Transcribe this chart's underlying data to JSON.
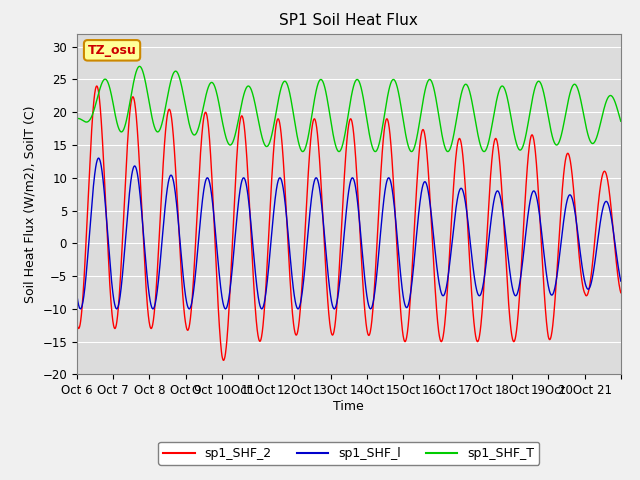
{
  "title": "SP1 Soil Heat Flux",
  "ylabel": "Soil Heat Flux (W/m2), SoilT (C)",
  "xlabel": "Time",
  "ylim": [
    -20,
    32
  ],
  "yticks": [
    -20,
    -15,
    -10,
    -5,
    0,
    5,
    10,
    15,
    20,
    25,
    30
  ],
  "xtick_labels": [
    "Oct 6",
    "Oct 7",
    "Oct 8",
    "Oct 9",
    "Oct 10Oct",
    "11Oct",
    "12Oct",
    "13Oct",
    "14Oct",
    "15Oct",
    "16Oct",
    "17Oct",
    "18Oct",
    "19Oct",
    "20Oct 21"
  ],
  "n_days": 15,
  "color_shf2": "#ff0000",
  "color_shf1": "#0000cc",
  "color_shft": "#00cc00",
  "plot_bg_color": "#dcdcdc",
  "fig_bg_color": "#f0f0f0",
  "annotation_text": "TZ_osu",
  "annotation_bg": "#ffff99",
  "annotation_border": "#cc8800",
  "legend_labels": [
    "sp1_SHF_2",
    "sp1_SHF_l",
    "sp1_SHF_T"
  ],
  "title_fontsize": 11,
  "axis_fontsize": 9,
  "tick_fontsize": 8.5,
  "legend_fontsize": 9
}
